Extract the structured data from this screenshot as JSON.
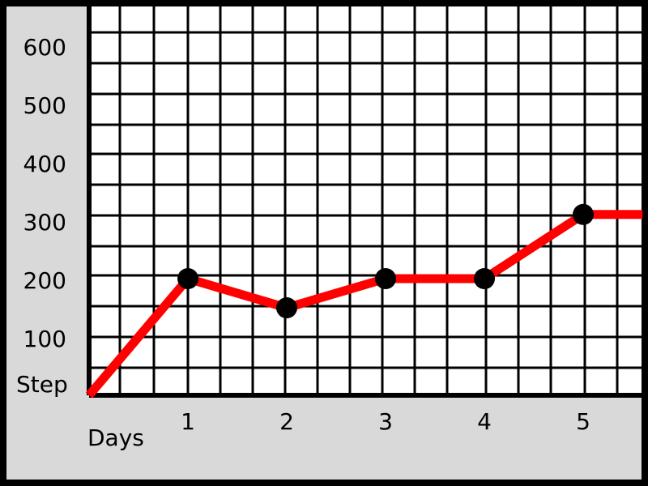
{
  "chart_data": {
    "type": "line",
    "title": "",
    "xlabel": "Days",
    "ylabel": "Step",
    "x": [
      0,
      1,
      2,
      3,
      4,
      5,
      5.6
    ],
    "y": [
      0,
      200,
      150,
      200,
      200,
      310,
      310
    ],
    "marker_x": [
      1,
      2,
      3,
      4,
      5
    ],
    "marker_y": [
      200,
      150,
      200,
      200,
      310
    ],
    "x_ticks": [
      "1",
      "2",
      "3",
      "4",
      "5"
    ],
    "y_ticks": [
      "100",
      "200",
      "300",
      "400",
      "500",
      "600"
    ],
    "xlim": [
      0,
      5.6
    ],
    "ylim": [
      0,
      630
    ],
    "grid": true,
    "line_color": "#ff0000",
    "marker_color": "#000000",
    "panel_color": "#d9d9d9",
    "plot_background": "#ffffff",
    "grid_color": "#000000"
  }
}
